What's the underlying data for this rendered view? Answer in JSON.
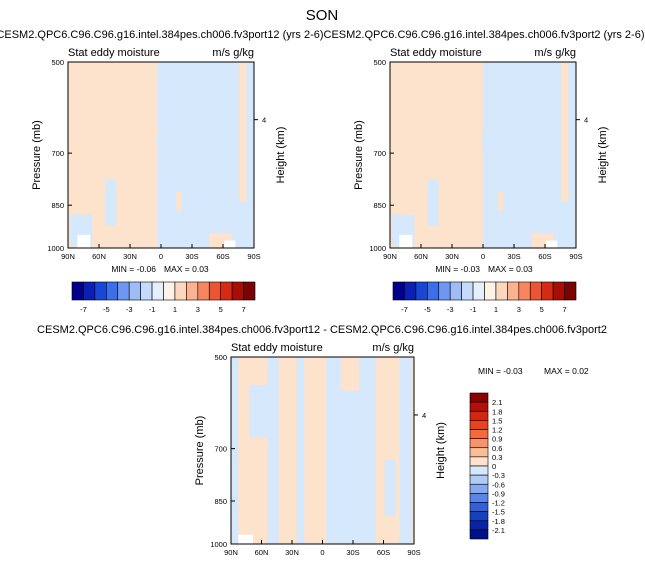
{
  "page_title": "SON",
  "colors": {
    "positive_fill": "#FDE2CC",
    "negative_fill": "#D6E8FB",
    "frame": "#000000"
  },
  "chart_data": [
    {
      "type": "heatmap",
      "title": "CESM2.QPC6.C96.C96.g16.intel.384pes.ch006.fv3port12 (yrs 2-6)",
      "left_label": "Stat eddy moisture",
      "right_label": "m/s g/kg",
      "ylabel": "Pressure (mb)",
      "ylabel_right": "Height (km)",
      "x_ticks": [
        "90N",
        "60N",
        "30N",
        "0",
        "30S",
        "60S",
        "90S"
      ],
      "y_ticks": [
        "500",
        "700",
        "850",
        "1000"
      ],
      "y_right_ticks": [
        "4"
      ],
      "min_label": "MIN = -0.06",
      "max_label": "MAX = 0.03",
      "colorbar_labels": [
        "-7",
        "-5",
        "-3",
        "-1",
        "1",
        "3",
        "5",
        "7"
      ],
      "colorbar_colors": [
        "#00008B",
        "#0A1FB5",
        "#1A46D6",
        "#3C6EEA",
        "#6E97F2",
        "#9EBDF7",
        "#C6DBFB",
        "#E6F0FD",
        "#FFF2E6",
        "#FDD6BF",
        "#FBB38F",
        "#F58660",
        "#EC5533",
        "#D62A14",
        "#A80E06",
        "#7A0403"
      ]
    },
    {
      "type": "heatmap",
      "title": "CESM2.QPC6.C96.C96.g16.intel.384pes.ch006.fv3port2 (yrs 2-6)",
      "left_label": "Stat eddy moisture",
      "right_label": "m/s g/kg",
      "ylabel": "Pressure (mb)",
      "ylabel_right": "Height (km)",
      "x_ticks": [
        "90N",
        "60N",
        "30N",
        "0",
        "30S",
        "60S",
        "90S"
      ],
      "y_ticks": [
        "500",
        "700",
        "850",
        "1000"
      ],
      "y_right_ticks": [
        "4"
      ],
      "min_label": "MIN = -0.03",
      "max_label": "MAX = 0.03",
      "colorbar_labels": [
        "-7",
        "-5",
        "-3",
        "-1",
        "1",
        "3",
        "5",
        "7"
      ],
      "colorbar_colors": [
        "#00008B",
        "#0A1FB5",
        "#1A46D6",
        "#3C6EEA",
        "#6E97F2",
        "#9EBDF7",
        "#C6DBFB",
        "#E6F0FD",
        "#FFF2E6",
        "#FDD6BF",
        "#FBB38F",
        "#F58660",
        "#EC5533",
        "#D62A14",
        "#A80E06",
        "#7A0403"
      ]
    },
    {
      "type": "heatmap",
      "title": "CESM2.QPC6.C96.C96.g16.intel.384pes.ch006.fv3port12 - CESM2.QPC6.C96.C96.g16.intel.384pes.ch006.fv3port2",
      "left_label": "Stat eddy moisture",
      "right_label": "m/s g/kg",
      "ylabel": "Pressure (mb)",
      "ylabel_right": "Height (km)",
      "x_ticks": [
        "90N",
        "60N",
        "30N",
        "0",
        "30S",
        "60S",
        "90S"
      ],
      "y_ticks": [
        "500",
        "700",
        "850",
        "1000"
      ],
      "y_right_ticks": [
        "4"
      ],
      "min_label": "MIN = -0.03",
      "max_label": "MAX = 0.02",
      "colorbar_labels": [
        "2.1",
        "1.8",
        "1.5",
        "1.2",
        "0.9",
        "0.6",
        "0.3",
        "0",
        "-0.3",
        "-0.6",
        "-0.9",
        "-1.2",
        "-1.5",
        "-1.8",
        "-2.1"
      ],
      "colorbar_colors": [
        "#8B0000",
        "#B50F0A",
        "#D3260F",
        "#E9431C",
        "#F46A3C",
        "#F89468",
        "#FBBC98",
        "#FDE2CC",
        "#D6E8FB",
        "#AFCBF6",
        "#86A9EF",
        "#5B84E6",
        "#3260D8",
        "#1540C0",
        "#0624A4",
        "#00108A"
      ]
    }
  ]
}
